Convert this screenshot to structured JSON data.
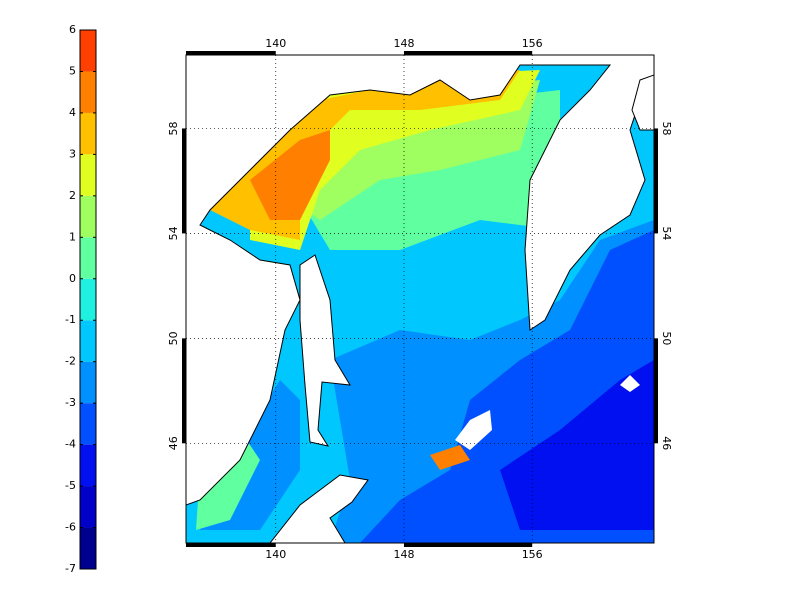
{
  "map": {
    "colorbar": {
      "ticks": [
        -7,
        -6,
        -5,
        -4,
        -3,
        -2,
        -1,
        0,
        1,
        2,
        3,
        4,
        5,
        6
      ],
      "colors": [
        "#00008f",
        "#0000c8",
        "#0010f0",
        "#0050ff",
        "#0090ff",
        "#00c8ff",
        "#20f0e0",
        "#60ffa0",
        "#a0ff60",
        "#e0ff20",
        "#ffc000",
        "#ff8000",
        "#ff4000",
        "#d40000"
      ]
    },
    "lonlim": [
      134.4,
      163.6
    ],
    "latlim": [
      42.2,
      60.8
    ],
    "lon_ticks": [
      140,
      148,
      156
    ],
    "lat_ticks": [
      46,
      50,
      54,
      58
    ],
    "grid": true
  }
}
